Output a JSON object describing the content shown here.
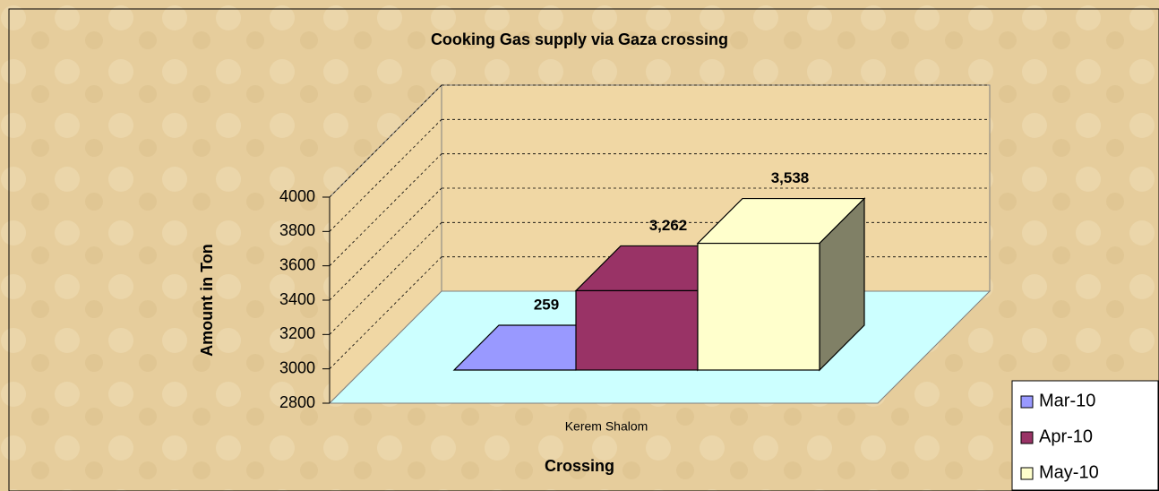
{
  "chart_data": {
    "type": "bar3d",
    "title": "Cooking Gas supply via Gaza crossing",
    "y_label": "Amount in Ton",
    "x_label": "Crossing",
    "categories": [
      "Kerem Shalom"
    ],
    "series": [
      {
        "name": "Mar-10",
        "color": "#9999ff",
        "side": "#4d4d80",
        "values": [
          259
        ],
        "value_labels": [
          "259"
        ]
      },
      {
        "name": "Apr-10",
        "color": "#993366",
        "side": "#6e2248",
        "values": [
          3262
        ],
        "value_labels": [
          "3,262"
        ]
      },
      {
        "name": "May-10",
        "color": "#ffffcc",
        "side": "#808066",
        "values": [
          3538
        ],
        "value_labels": [
          "3,538"
        ]
      }
    ],
    "ylim": [
      2800,
      4000
    ],
    "yticks": [
      2800,
      3000,
      3200,
      3400,
      3600,
      3800,
      4000
    ],
    "grid": true,
    "legend": "bottom-right"
  }
}
